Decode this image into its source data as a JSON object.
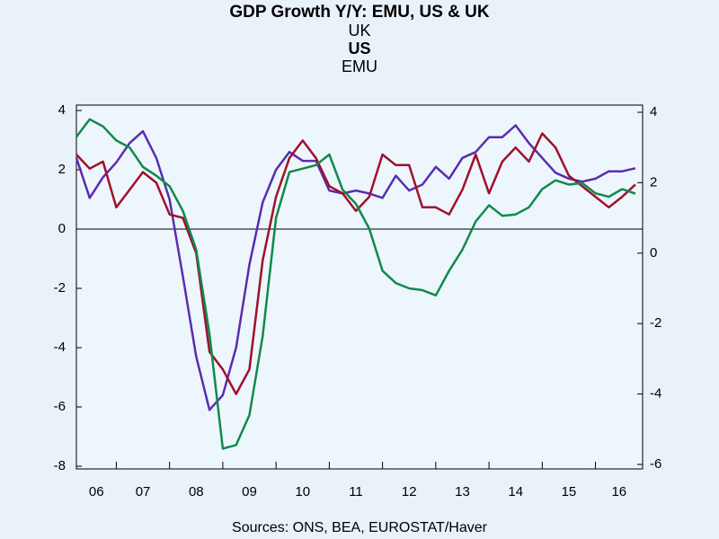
{
  "chart_data": {
    "type": "line",
    "title": "GDP Growth Y/Y: EMU, US & UK",
    "source": "Sources:  ONS, BEA, EUROSTAT/Haver",
    "categories": [
      "06",
      null,
      null,
      "07",
      null,
      null,
      null,
      "08",
      null,
      null,
      null,
      "09",
      null,
      null,
      null,
      "10",
      null,
      null,
      null,
      "11",
      null,
      null,
      null,
      "12",
      null,
      null,
      null,
      "13",
      null,
      null,
      null,
      "14",
      null,
      null,
      null,
      "15",
      null,
      null,
      null,
      "16",
      null,
      null,
      null
    ],
    "series": [
      {
        "name": "UK",
        "color": "#5a2db0",
        "axis": "y",
        "values": [
          2.4,
          1.05,
          1.75,
          2.25,
          2.9,
          3.3,
          2.4,
          1.0,
          -1.6,
          -4.3,
          -6.1,
          -5.6,
          -4.0,
          -1.2,
          0.9,
          2.0,
          2.6,
          2.3,
          2.3,
          1.3,
          1.2,
          1.3,
          1.2,
          1.05,
          1.8,
          1.3,
          1.5,
          2.1,
          1.7,
          2.4,
          2.6,
          3.1,
          3.1,
          3.5,
          2.9,
          2.4,
          1.9,
          1.7,
          1.6,
          1.7,
          1.95,
          1.95,
          2.05
        ]
      },
      {
        "name": "US",
        "color": "#a0102a",
        "axis": "y2",
        "values": [
          2.8,
          2.4,
          2.6,
          1.3,
          1.8,
          2.3,
          2.0,
          1.1,
          1.0,
          0.0,
          -2.8,
          -3.3,
          -4.0,
          -3.3,
          -0.2,
          1.6,
          2.7,
          3.2,
          2.7,
          1.9,
          1.7,
          1.2,
          1.6,
          2.8,
          2.5,
          2.5,
          1.3,
          1.3,
          1.1,
          1.8,
          2.8,
          1.7,
          2.6,
          3.0,
          2.6,
          3.4,
          3.0,
          2.2,
          1.9,
          1.6,
          1.3,
          1.6,
          1.95
        ]
      },
      {
        "name": "EMU",
        "color": "#108a4a",
        "axis": "y2",
        "values": [
          3.3,
          3.8,
          3.6,
          3.2,
          3.0,
          2.45,
          2.2,
          1.9,
          1.2,
          0.1,
          -2.3,
          -5.55,
          -5.45,
          -4.6,
          -2.35,
          1.0,
          2.3,
          2.4,
          2.5,
          2.8,
          1.8,
          1.4,
          0.7,
          -0.5,
          -0.85,
          -1.0,
          -1.05,
          -1.2,
          -0.5,
          0.1,
          0.9,
          1.36,
          1.06,
          1.1,
          1.3,
          1.82,
          2.07,
          1.95,
          1.99,
          1.7,
          1.6,
          1.82,
          1.69
        ]
      }
    ],
    "ylim": [
      -8,
      4
    ],
    "yticks": [
      -8,
      -6,
      -4,
      -2,
      0,
      2,
      4
    ],
    "y2lim": [
      -6,
      4
    ],
    "y2ticks": [
      -6,
      -4,
      -2,
      0,
      2,
      4
    ],
    "zero_line": true
  }
}
